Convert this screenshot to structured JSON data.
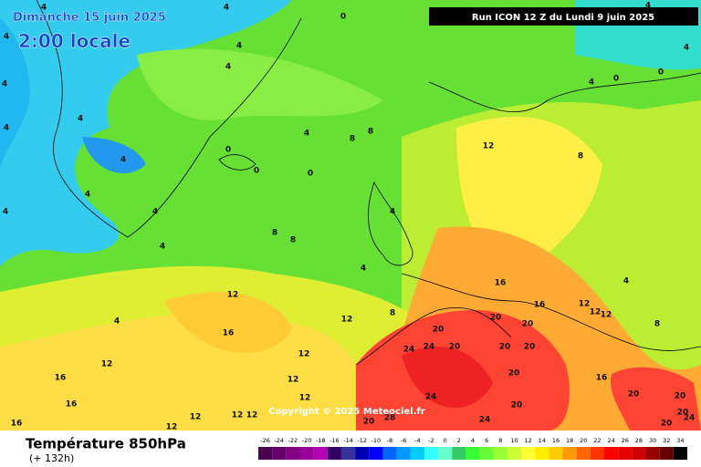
{
  "header": {
    "date": "Dimanche 15 juin 2025",
    "time": "2:00 locale",
    "run": "Run ICON 12 Z du Lundi 9 juin 2025",
    "copyright": "Copyright © 2025 Meteociel.fr"
  },
  "footer": {
    "title": "Température 850hPa",
    "lead": "(+ 132h)"
  },
  "contour_labels": [
    0,
    4,
    4,
    4,
    4,
    4,
    4,
    4,
    4,
    0,
    0,
    0,
    4,
    8,
    8,
    12,
    8,
    8,
    4,
    4,
    12,
    12,
    8,
    16,
    12,
    16,
    16,
    16,
    12,
    12,
    12,
    12,
    12,
    12,
    12,
    16,
    16,
    20,
    20,
    20,
    24,
    24,
    20,
    20,
    20,
    20,
    24,
    28,
    20,
    20,
    24,
    20,
    20,
    20,
    24,
    20,
    16,
    12,
    12,
    12,
    8,
    4,
    8,
    0,
    0,
    4,
    4,
    4,
    4,
    4,
    4,
    4,
    4,
    4
  ],
  "scale": {
    "labels": [
      -26,
      -24,
      -22,
      -20,
      -18,
      -16,
      -14,
      -12,
      -10,
      -8,
      -6,
      -4,
      -2,
      0,
      2,
      4,
      6,
      8,
      10,
      12,
      14,
      16,
      18,
      20,
      22,
      24,
      26,
      28,
      30,
      32,
      34
    ],
    "colors": [
      "#4b0050",
      "#66006b",
      "#800080",
      "#990099",
      "#b300b3",
      "#330066",
      "#333399",
      "#0000b3",
      "#0000ff",
      "#0066ff",
      "#0099ff",
      "#00ccff",
      "#33ffff",
      "#66ffcc",
      "#33cc66",
      "#33ff33",
      "#66ff33",
      "#99ff33",
      "#ccff33",
      "#ffff33",
      "#ffee00",
      "#ffcc00",
      "#ff9900",
      "#ff6600",
      "#ff3300",
      "#ff0000",
      "#e60000",
      "#cc0000",
      "#990000",
      "#660000",
      "#000000"
    ]
  }
}
